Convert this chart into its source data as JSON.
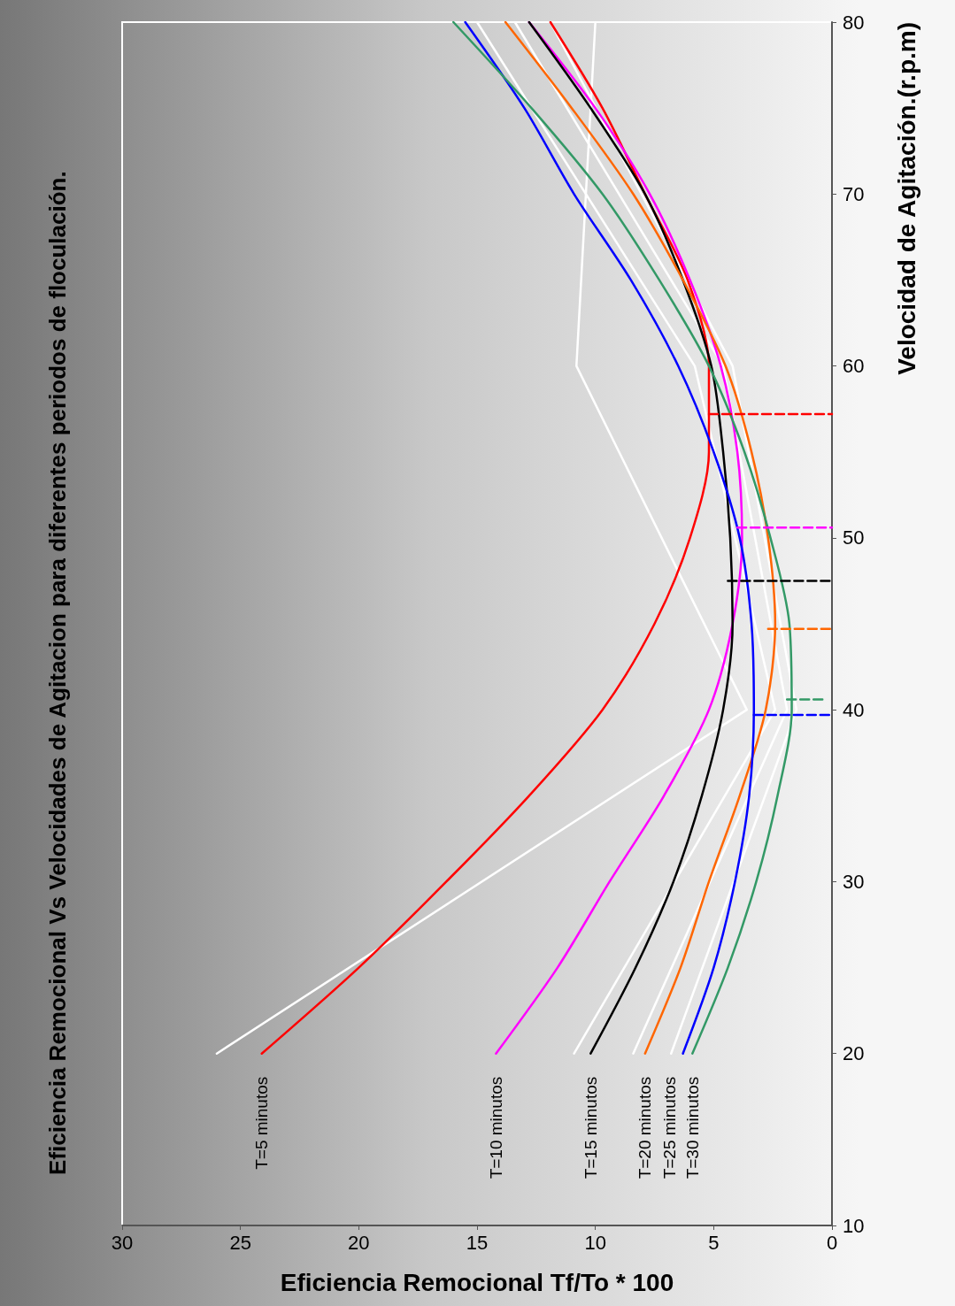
{
  "chart_data": {
    "type": "line",
    "title": "Eficiencia Remocional Vs Velocidades de Agitacion para diferentes periodos de floculación.",
    "xlabel": "Eficiencia Remocional Tf/To * 100",
    "ylabel": "Velocidad de Agitación.(r.p.m)",
    "xlim": [
      30,
      0
    ],
    "xticks": [
      30,
      25,
      20,
      15,
      10,
      5,
      0
    ],
    "ylim": [
      10,
      80
    ],
    "yticks": [
      10,
      20,
      30,
      40,
      50,
      60,
      70,
      80
    ],
    "grid": false,
    "legend": false,
    "marker": "none",
    "series": [
      {
        "color": "#ffffff",
        "line_style": "solid",
        "x": [
          26.0,
          3.6,
          10.8,
          10.0
        ],
        "values": [
          20,
          40,
          60,
          80
        ]
      },
      {
        "color": "#ffffff",
        "line_style": "solid",
        "x": [
          10.9,
          2.4,
          5.8,
          15.0
        ],
        "values": [
          20,
          40,
          60,
          80
        ]
      },
      {
        "color": "#ffffff",
        "line_style": "solid",
        "x": [
          8.4,
          1.9,
          4.6,
          13.4
        ],
        "values": [
          20,
          40,
          60,
          80
        ]
      },
      {
        "color": "#ffffff",
        "line_style": "solid",
        "x": [
          6.8,
          1.5,
          4.2,
          11.9
        ],
        "values": [
          20,
          40,
          60,
          80
        ]
      },
      {
        "name": "T=5 minutos",
        "color": "#ff0000",
        "line_style": "solid",
        "x": [
          24.1,
          20.0,
          16.3,
          12.8,
          9.7,
          7.5,
          6.0,
          5.2,
          5.2,
          6.1,
          7.9,
          9.7,
          11.9
        ],
        "values": [
          20,
          25,
          30,
          35,
          40,
          45,
          50,
          55,
          60,
          65,
          70,
          75,
          80
        ]
      },
      {
        "name": "T=10 minutos",
        "color": "#ff00ff",
        "line_style": "solid",
        "x": [
          14.2,
          11.6,
          9.4,
          7.1,
          5.2,
          4.2,
          3.8,
          4.0,
          4.7,
          6.0,
          7.7,
          10.0,
          12.8
        ],
        "values": [
          20,
          25,
          30,
          35,
          40,
          45,
          50,
          55,
          60,
          65,
          70,
          75,
          80
        ]
      },
      {
        "name": "T=15 minutos",
        "color": "#000000",
        "line_style": "solid",
        "x": [
          10.2,
          8.3,
          6.7,
          5.5,
          4.6,
          4.2,
          4.3,
          4.6,
          5.1,
          6.3,
          7.9,
          10.2,
          12.8
        ],
        "values": [
          20,
          25,
          30,
          35,
          40,
          45,
          50,
          55,
          60,
          65,
          70,
          75,
          80
        ]
      },
      {
        "name": "T=20 minutos",
        "color": "#ff6600",
        "line_style": "solid",
        "x": [
          7.9,
          6.4,
          5.2,
          3.9,
          2.8,
          2.4,
          2.7,
          3.4,
          4.5,
          6.3,
          8.4,
          11.0,
          13.8
        ],
        "values": [
          20,
          25,
          30,
          35,
          40,
          45,
          50,
          55,
          60,
          65,
          70,
          75,
          80
        ]
      },
      {
        "name": "T=25 minutos",
        "color": "#0000ff",
        "line_style": "solid",
        "x": [
          6.3,
          5.0,
          4.1,
          3.5,
          3.3,
          3.4,
          3.9,
          5.0,
          6.5,
          8.5,
          10.9,
          13.0,
          15.5
        ],
        "values": [
          20,
          25,
          30,
          35,
          40,
          45,
          50,
          55,
          60,
          65,
          70,
          75,
          80
        ]
      },
      {
        "name": "T=30 minutos",
        "color": "#339966",
        "line_style": "solid",
        "x": [
          5.9,
          4.4,
          3.2,
          2.3,
          1.7,
          1.8,
          2.6,
          3.7,
          5.2,
          7.3,
          9.7,
          12.7,
          16.0
        ],
        "values": [
          20,
          25,
          30,
          35,
          40,
          45,
          50,
          55,
          60,
          65,
          70,
          75,
          80
        ]
      },
      {
        "color": "#ff0000",
        "line_style": "dashed",
        "x": [
          5.2,
          0
        ],
        "values": [
          57.2,
          57.2
        ]
      },
      {
        "color": "#ff00ff",
        "line_style": "dashed",
        "x": [
          4.0,
          0
        ],
        "values": [
          50.6,
          50.6
        ]
      },
      {
        "color": "#000000",
        "line_style": "dashed",
        "x": [
          4.4,
          0
        ],
        "values": [
          47.5,
          47.5
        ]
      },
      {
        "color": "#ff6600",
        "line_style": "dashed",
        "x": [
          2.7,
          0
        ],
        "values": [
          44.7,
          44.7
        ]
      },
      {
        "color": "#0000ff",
        "line_style": "dashed",
        "x": [
          3.3,
          0
        ],
        "values": [
          39.7,
          39.7
        ]
      },
      {
        "color": "#339966",
        "line_style": "dashed",
        "x": [
          1.9,
          0.4
        ],
        "values": [
          40.6,
          40.6
        ]
      }
    ]
  }
}
